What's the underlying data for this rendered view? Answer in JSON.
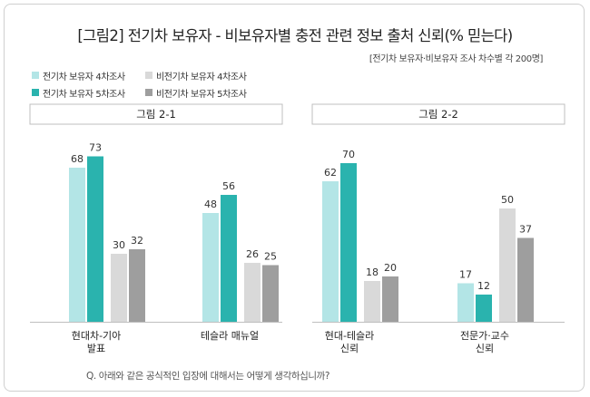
{
  "title": "[그림2] 전기차 보유자 - 비보유자별 충전 관련 정보 출처 신뢰(% 믿는다)",
  "subtitle": "[전기차 보유자·비보유자 조사 차수별  각 200명]",
  "question": "Q. 아래와 같은 공식적인 입장에 대해서는 어떻게 생각하십니까?",
  "legend": [
    {
      "label": "전기차 보유자 4차조사",
      "color": "#b3e5e6"
    },
    {
      "label": "비전기차 보유자 4차조사",
      "color": "#d9d9d9"
    },
    {
      "label": "전기차 보유자 5차조사",
      "color": "#2ab3ae"
    },
    {
      "label": "비전기차 보유자 5차조사",
      "color": "#9e9e9e"
    }
  ],
  "chart_data": [
    {
      "type": "bar",
      "title": "그림 2-1",
      "categories": [
        [
          "현대차-기아",
          "발표"
        ],
        [
          "테슬라 매뉴얼"
        ]
      ],
      "series": [
        {
          "name": "전기차 보유자 4차조사",
          "values": [
            68,
            48
          ],
          "color": "#b3e5e6"
        },
        {
          "name": "전기차 보유자 5차조사",
          "values": [
            73,
            56
          ],
          "color": "#2ab3ae"
        },
        {
          "name": "비전기차 보유자 4차조사",
          "values": [
            30,
            26
          ],
          "color": "#d9d9d9"
        },
        {
          "name": "비전기차 보유자 5차조사",
          "values": [
            32,
            25
          ],
          "color": "#9e9e9e"
        }
      ],
      "ylim": [
        0,
        80
      ]
    },
    {
      "type": "bar",
      "title": "그림 2-2",
      "categories": [
        [
          "현대-테슬라",
          "신뢰"
        ],
        [
          "전문가·교수",
          "신뢰"
        ]
      ],
      "series": [
        {
          "name": "전기차 보유자 4차조사",
          "values": [
            62,
            17
          ],
          "color": "#b3e5e6"
        },
        {
          "name": "전기차 보유자 5차조사",
          "values": [
            70,
            12
          ],
          "color": "#2ab3ae"
        },
        {
          "name": "비전기차 보유자 4차조사",
          "values": [
            18,
            50
          ],
          "color": "#d9d9d9"
        },
        {
          "name": "비전기차 보유자 5차조사",
          "values": [
            20,
            37
          ],
          "color": "#9e9e9e"
        }
      ],
      "ylim": [
        0,
        80
      ]
    }
  ]
}
